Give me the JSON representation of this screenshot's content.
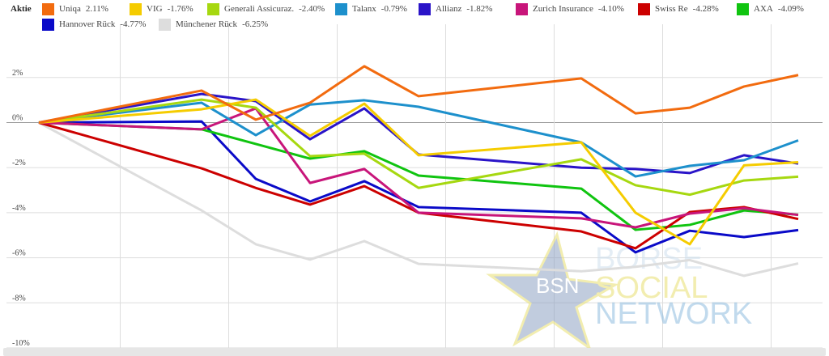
{
  "chart_data": {
    "type": "line",
    "legend_title": "Aktie",
    "legend_position": "top",
    "x": [
      0,
      3,
      4,
      5,
      6,
      7,
      10,
      11,
      12,
      13,
      14
    ],
    "xlim": [
      0,
      14.4
    ],
    "ylim": [
      -10,
      3.5
    ],
    "yticks": [
      2,
      0,
      -2,
      -4,
      -6,
      -8,
      -10
    ],
    "ytick_labels": [
      "2%",
      "0%",
      "-2%",
      "-4%",
      "-6%",
      "-8%",
      "-10%"
    ],
    "grid": true,
    "series": [
      {
        "name": "Uniqa",
        "change": "2.11%",
        "color": "#f26b0f",
        "values": [
          0,
          1.42,
          0.13,
          0.88,
          2.5,
          1.17,
          1.96,
          0.41,
          0.66,
          1.6,
          2.11
        ]
      },
      {
        "name": "VIG",
        "change": "-1.76%",
        "color": "#f5cc00",
        "values": [
          0,
          0.59,
          1.02,
          -0.59,
          0.84,
          -1.45,
          -0.88,
          -4.0,
          -5.4,
          -1.9,
          -1.76
        ]
      },
      {
        "name": "Generali Assicuraz.",
        "change": "-2.40%",
        "color": "#a6d810",
        "values": [
          0,
          1.02,
          0.66,
          -1.49,
          -1.38,
          -2.9,
          -1.63,
          -2.78,
          -3.2,
          -2.57,
          -2.4
        ]
      },
      {
        "name": "Talanx",
        "change": "-0.79%",
        "color": "#1d90cc",
        "values": [
          0,
          0.88,
          -0.56,
          0.8,
          0.99,
          0.7,
          -0.88,
          -2.39,
          -1.92,
          -1.67,
          -0.79
        ]
      },
      {
        "name": "Allianz",
        "change": "-1.82%",
        "color": "#2a14c8",
        "values": [
          0,
          1.27,
          0.95,
          -0.74,
          0.63,
          -1.42,
          -2.0,
          -2.06,
          -2.24,
          -1.45,
          -1.82
        ]
      },
      {
        "name": "Zurich Insurance",
        "change": "-4.10%",
        "color": "#c8157a",
        "values": [
          0,
          -0.3,
          0.63,
          -2.68,
          -2.06,
          -4.0,
          -4.25,
          -4.65,
          -4.04,
          -3.8,
          -4.1
        ]
      },
      {
        "name": "Swiss Re",
        "change": "-4.28%",
        "color": "#cc0000",
        "values": [
          0,
          -2.03,
          -2.9,
          -3.64,
          -2.82,
          -4.0,
          -4.83,
          -5.58,
          -3.97,
          -3.75,
          -4.28
        ]
      },
      {
        "name": "AXA",
        "change": "-4.09%",
        "color": "#10c410",
        "values": [
          0,
          -0.3,
          -0.95,
          -1.6,
          -1.27,
          -2.35,
          -2.93,
          -4.76,
          -4.54,
          -3.9,
          -4.09
        ]
      },
      {
        "name": "Hannover Rück",
        "change": "-4.77%",
        "color": "#0a0ac8",
        "values": [
          0,
          0.05,
          -2.5,
          -3.5,
          -2.6,
          -3.75,
          -4.0,
          -5.76,
          -4.8,
          -5.08,
          -4.77
        ]
      },
      {
        "name": "Münchener Rück",
        "change": "-6.25%",
        "color": "#dddddd",
        "values": [
          0,
          -3.9,
          -5.4,
          -6.08,
          -5.26,
          -6.27,
          -6.6,
          -6.4,
          -6.1,
          -6.8,
          -6.25
        ]
      }
    ]
  },
  "watermark": {
    "logo": "BSN",
    "line1": "BÖRSE",
    "line2": "SOCIAL",
    "line3": "NETWORK"
  }
}
